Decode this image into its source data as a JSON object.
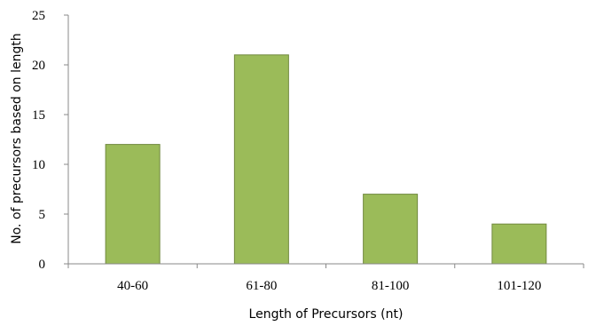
{
  "chart_data": {
    "type": "bar",
    "title": "",
    "xlabel": "Length of Precursors (nt)",
    "ylabel": "No. of precursors based on length",
    "categories": [
      "40-60",
      "61-80",
      "81-100",
      "101-120"
    ],
    "values": [
      12,
      21,
      7,
      4
    ],
    "ylim": [
      0,
      25
    ],
    "yticks": [
      0,
      5,
      10,
      15,
      20,
      25
    ],
    "ytick_labels": [
      "0",
      "5",
      "10",
      "15",
      "20",
      "25"
    ],
    "grid": false,
    "legend": "none",
    "colors": {
      "bar_fill": "#9bbb59",
      "bar_stroke": "#71893f",
      "axis": "#888888"
    }
  }
}
